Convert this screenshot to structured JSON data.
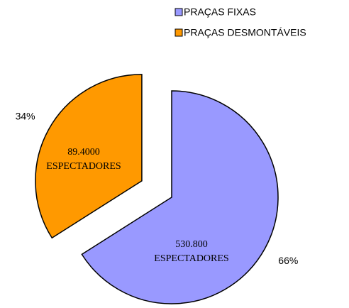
{
  "chart_data": {
    "type": "pie",
    "categories": [
      "PRAÇAS FIXAS",
      "PRAÇAS DESMONTÁVEIS"
    ],
    "values": [
      66,
      34
    ],
    "value_labels": [
      "66%",
      "34%"
    ],
    "colors": [
      "#9999ff",
      "#ff9900"
    ],
    "annotations": [
      [
        "530.800",
        "ESPECTADORES"
      ],
      [
        "89.4000",
        "ESPECTADORES"
      ]
    ],
    "legend": "top-right"
  }
}
